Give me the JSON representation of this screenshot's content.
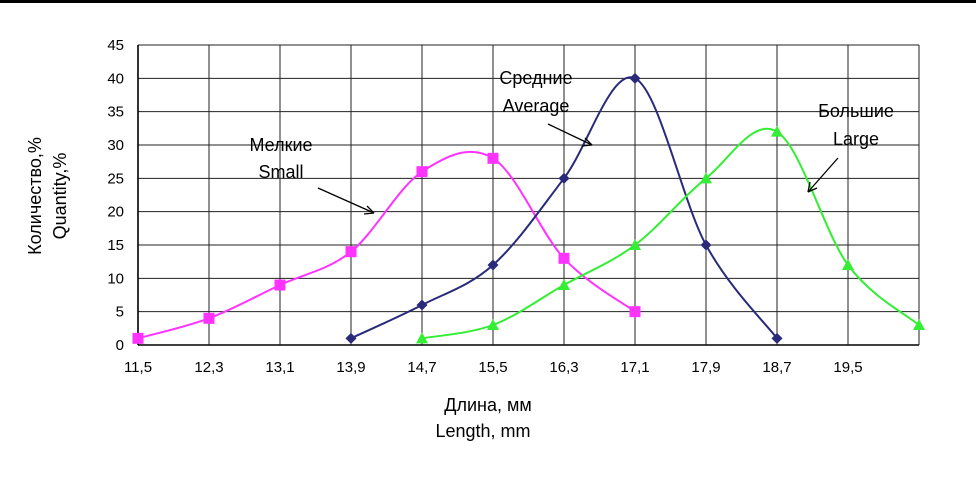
{
  "chart_data": {
    "type": "line",
    "x_categories": [
      "11,5",
      "12,3",
      "13,1",
      "13,9",
      "14,7",
      "15,5",
      "16,3",
      "17,1",
      "17,9",
      "18,7",
      "19,5"
    ],
    "xlabel_ru": "Длина, мм",
    "xlabel_en": "Length, mm",
    "ylabel_ru": "Количество,%",
    "ylabel_en": "Quantity,%",
    "ylim": [
      0,
      45
    ],
    "yticks": [
      0,
      5,
      10,
      15,
      20,
      25,
      30,
      35,
      40,
      45
    ],
    "grid": true,
    "series": [
      {
        "name_ru": "Мелкие",
        "name_en": "Small",
        "color": "#ff33ff",
        "marker": "square",
        "points": [
          [
            11.5,
            1
          ],
          [
            12.3,
            4
          ],
          [
            13.1,
            9
          ],
          [
            13.9,
            14
          ],
          [
            14.7,
            26
          ],
          [
            15.5,
            28
          ],
          [
            16.3,
            13
          ],
          [
            17.1,
            5
          ]
        ]
      },
      {
        "name_ru": "Средние",
        "name_en": "Average",
        "color": "#2a2a7a",
        "marker": "diamond",
        "points": [
          [
            13.9,
            1
          ],
          [
            14.7,
            6
          ],
          [
            15.5,
            12
          ],
          [
            16.3,
            25
          ],
          [
            17.1,
            40
          ],
          [
            17.9,
            15
          ],
          [
            18.7,
            1
          ]
        ]
      },
      {
        "name_ru": "Большие",
        "name_en": "Large",
        "color": "#33ee33",
        "marker": "triangle",
        "points": [
          [
            14.7,
            1
          ],
          [
            15.5,
            3
          ],
          [
            16.3,
            9
          ],
          [
            17.1,
            15
          ],
          [
            17.9,
            25
          ],
          [
            18.7,
            32
          ],
          [
            19.5,
            12
          ],
          [
            20.3,
            3
          ]
        ]
      }
    ]
  }
}
